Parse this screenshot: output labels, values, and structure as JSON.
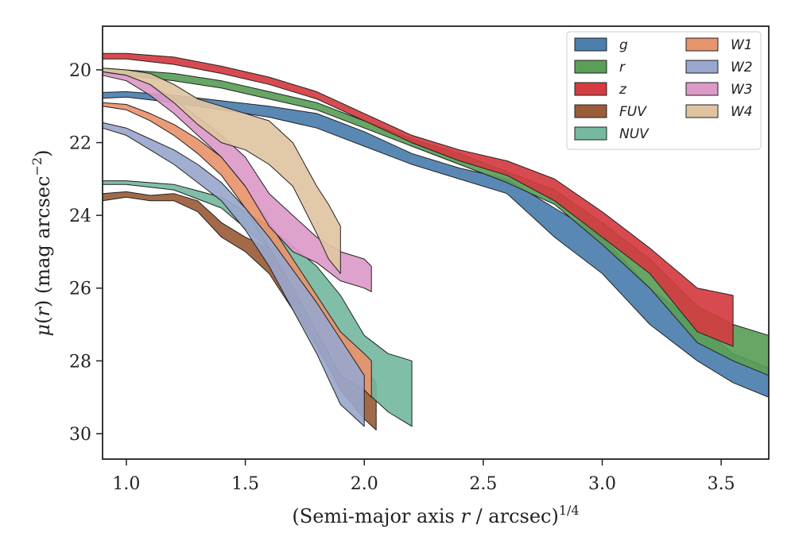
{
  "chart_data": {
    "type": "area",
    "xlabel": "(Semi-major axis r / arcsec)^1/4",
    "ylabel": "μ(r) (mag arcsec^-2)",
    "xlim": [
      0.9,
      3.7
    ],
    "ylim": [
      30.7,
      18.8
    ],
    "y_inverted": true,
    "x_ticks": [
      1.0,
      1.5,
      2.0,
      2.5,
      3.0,
      3.5
    ],
    "x_tick_labels": [
      "1.0",
      "1.5",
      "2.0",
      "2.5",
      "3.0",
      "3.5"
    ],
    "y_ticks": [
      20,
      22,
      24,
      26,
      28,
      30
    ],
    "y_tick_labels": [
      "20",
      "22",
      "24",
      "26",
      "28",
      "30"
    ],
    "grid": false,
    "legend": {
      "placement": "top-right",
      "columns": 2
    },
    "series": [
      {
        "name": "g",
        "color": "#4c7eae",
        "x": [
          0.9,
          1.0,
          1.2,
          1.4,
          1.6,
          1.8,
          2.0,
          2.2,
          2.4,
          2.6,
          2.8,
          3.0,
          3.2,
          3.4,
          3.55,
          3.7
        ],
        "lo": [
          20.62,
          20.6,
          20.7,
          20.85,
          21.0,
          21.2,
          21.7,
          22.3,
          22.7,
          23.0,
          23.8,
          24.6,
          26.0,
          27.0,
          27.8,
          28.2
        ],
        "hi": [
          20.78,
          20.75,
          20.9,
          21.1,
          21.3,
          21.6,
          22.1,
          22.6,
          23.0,
          23.4,
          24.6,
          25.6,
          27.0,
          28.0,
          28.6,
          29.0
        ]
      },
      {
        "name": "r",
        "color": "#5a9e58",
        "x": [
          0.9,
          1.0,
          1.2,
          1.4,
          1.6,
          1.8,
          2.0,
          2.2,
          2.4,
          2.6,
          2.8,
          3.0,
          3.2,
          3.4,
          3.55,
          3.7
        ],
        "lo": [
          19.95,
          20.0,
          20.1,
          20.3,
          20.6,
          20.9,
          21.4,
          21.9,
          22.3,
          22.8,
          23.3,
          24.2,
          25.2,
          26.5,
          27.0,
          27.3
        ],
        "hi": [
          20.1,
          20.15,
          20.3,
          20.5,
          20.8,
          21.1,
          21.6,
          22.1,
          22.6,
          23.1,
          23.7,
          24.8,
          26.0,
          27.5,
          28.0,
          28.4
        ]
      },
      {
        "name": "z",
        "color": "#d43c41",
        "x": [
          0.9,
          1.0,
          1.2,
          1.4,
          1.6,
          1.8,
          2.0,
          2.2,
          2.4,
          2.6,
          2.8,
          3.0,
          3.2,
          3.4,
          3.55
        ],
        "lo": [
          19.55,
          19.55,
          19.65,
          19.9,
          20.2,
          20.6,
          21.2,
          21.8,
          22.2,
          22.5,
          23.0,
          23.9,
          24.9,
          26.0,
          26.2
        ],
        "hi": [
          19.7,
          19.7,
          19.85,
          20.1,
          20.4,
          20.8,
          21.4,
          22.0,
          22.5,
          22.9,
          23.6,
          24.6,
          25.6,
          27.2,
          27.6
        ]
      },
      {
        "name": "FUV",
        "color": "#9a5d3a",
        "x": [
          0.9,
          1.0,
          1.1,
          1.2,
          1.3,
          1.4,
          1.5,
          1.6,
          1.7,
          1.8,
          1.9,
          2.0,
          2.05
        ],
        "lo": [
          23.4,
          23.35,
          23.45,
          23.4,
          23.6,
          24.2,
          24.6,
          24.9,
          25.6,
          26.4,
          27.2,
          28.2,
          28.6
        ],
        "hi": [
          23.6,
          23.5,
          23.6,
          23.6,
          23.9,
          24.6,
          25.0,
          25.6,
          26.6,
          27.6,
          28.8,
          29.6,
          29.9
        ]
      },
      {
        "name": "NUV",
        "color": "#76b9a0",
        "x": [
          0.9,
          1.0,
          1.2,
          1.4,
          1.6,
          1.8,
          1.9,
          2.0,
          2.1,
          2.2
        ],
        "lo": [
          23.05,
          23.05,
          23.15,
          23.5,
          24.3,
          25.4,
          26.2,
          27.3,
          27.8,
          28.0
        ],
        "hi": [
          23.15,
          23.15,
          23.3,
          23.8,
          24.9,
          26.4,
          27.6,
          28.8,
          29.4,
          29.8
        ]
      },
      {
        "name": "W1",
        "color": "#e8946c",
        "x": [
          0.9,
          1.0,
          1.1,
          1.2,
          1.3,
          1.4,
          1.5,
          1.6,
          1.7,
          1.8,
          1.9,
          2.0,
          2.03
        ],
        "lo": [
          20.9,
          20.95,
          21.2,
          21.5,
          21.9,
          22.4,
          23.2,
          24.2,
          25.2,
          26.2,
          27.2,
          27.8,
          28.0
        ],
        "hi": [
          21.0,
          21.1,
          21.4,
          21.8,
          22.3,
          22.9,
          23.8,
          24.9,
          26.0,
          27.2,
          28.4,
          28.8,
          29.0
        ]
      },
      {
        "name": "W2",
        "color": "#9aa7cc",
        "x": [
          0.9,
          1.0,
          1.1,
          1.2,
          1.3,
          1.4,
          1.5,
          1.6,
          1.7,
          1.8,
          1.9,
          2.0
        ],
        "lo": [
          21.45,
          21.6,
          21.9,
          22.2,
          22.6,
          23.1,
          23.8,
          24.6,
          25.5,
          26.4,
          27.4,
          28.4
        ],
        "hi": [
          21.6,
          21.8,
          22.2,
          22.6,
          23.1,
          23.6,
          24.4,
          25.4,
          26.6,
          27.8,
          29.2,
          29.8
        ]
      },
      {
        "name": "W3",
        "color": "#dc9ac8",
        "x": [
          0.9,
          1.0,
          1.1,
          1.2,
          1.3,
          1.4,
          1.5,
          1.6,
          1.7,
          1.8,
          1.9,
          2.0,
          2.03
        ],
        "lo": [
          20.05,
          20.15,
          20.4,
          20.8,
          21.3,
          21.8,
          22.4,
          23.4,
          24.0,
          24.6,
          25.0,
          25.2,
          25.4
        ],
        "hi": [
          20.15,
          20.3,
          20.7,
          21.2,
          21.8,
          22.4,
          23.2,
          24.3,
          25.0,
          25.3,
          25.8,
          26.0,
          26.1
        ]
      },
      {
        "name": "W4",
        "color": "#e0c4a2",
        "x": [
          0.9,
          1.0,
          1.1,
          1.2,
          1.3,
          1.4,
          1.5,
          1.6,
          1.7,
          1.8,
          1.85,
          1.9
        ],
        "lo": [
          19.95,
          20.0,
          20.1,
          20.4,
          20.8,
          21.0,
          21.2,
          21.4,
          22.0,
          23.2,
          23.7,
          24.3
        ],
        "hi": [
          20.05,
          20.15,
          20.4,
          20.9,
          21.5,
          22.0,
          22.2,
          22.6,
          23.2,
          24.5,
          25.2,
          25.6
        ]
      }
    ]
  }
}
